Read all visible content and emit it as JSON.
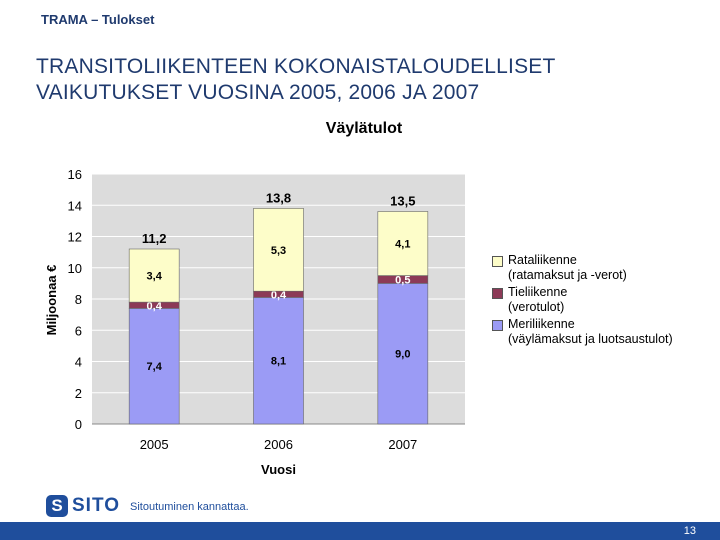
{
  "header": {
    "breadcrumb": "TRAMA – Tulokset"
  },
  "slide": {
    "title_line1": "TRANSITOLIIKENTEEN KOKONAISTALOUDELLISET",
    "title_line2": "VAIKUTUKSET VUOSINA 2005, 2006 JA 2007"
  },
  "chart_data": {
    "type": "bar",
    "stacked": true,
    "title": "Väylätulot",
    "xlabel": "Vuosi",
    "ylabel": "Miljoonaa €",
    "ylim": [
      0,
      16
    ],
    "yticks": [
      0,
      2,
      4,
      6,
      8,
      10,
      12,
      14,
      16
    ],
    "categories": [
      "2005",
      "2006",
      "2007"
    ],
    "series": [
      {
        "name": "Meriliikenne",
        "note": "(väylämaksut ja luotsaustulot)",
        "color": "#9b9bf5",
        "values": [
          7.4,
          8.1,
          9.0
        ],
        "labels": [
          "7,4",
          "8,1",
          "9,0"
        ]
      },
      {
        "name": "Tieliikenne",
        "note": "(verotulot)",
        "color": "#8c3a57",
        "values": [
          0.4,
          0.4,
          0.5
        ],
        "labels": [
          "0,4",
          "0,4",
          "0,5"
        ]
      },
      {
        "name": "Rataliikenne",
        "note": "(ratamaksut ja -verot)",
        "color": "#fdfdc9",
        "values": [
          3.4,
          5.3,
          4.1
        ],
        "labels": [
          "3,4",
          "5,3",
          "4,1"
        ]
      }
    ],
    "totals": [
      11.2,
      13.8,
      13.5
    ],
    "total_labels": [
      "11,2",
      "13,8",
      "13,5"
    ],
    "legend_position": "right"
  },
  "footer": {
    "logo_text": "SITO",
    "slogan": "Sitoutuminen kannattaa.",
    "page_number": "13"
  },
  "colors": {
    "brand": "#1f4e9c",
    "title": "#1f3a6e"
  }
}
